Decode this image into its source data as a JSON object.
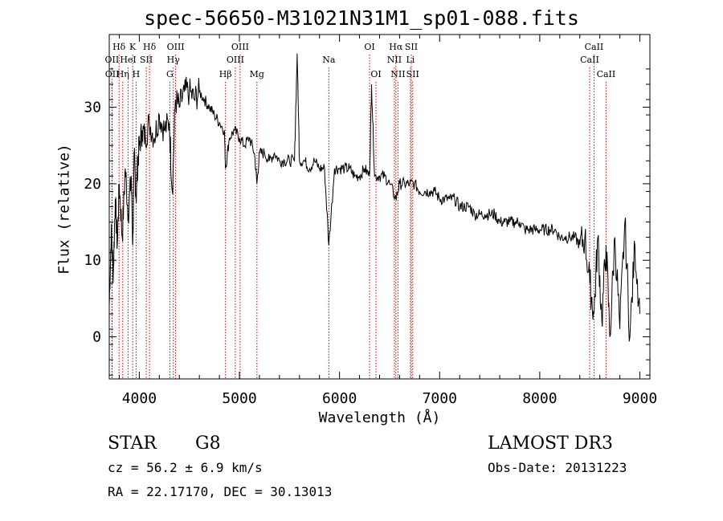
{
  "title": "spec-56650-M31021N31M1_sp01-088.fits",
  "footer": {
    "object_type": "STAR",
    "spectral_class": "G8",
    "survey": "LAMOST DR3",
    "cz": "cz = 56.2 ± 6.9 km/s",
    "obs_date": "Obs-Date: 20131223",
    "coords": "RA =  22.17170, DEC =  30.13013"
  },
  "chart_data": {
    "type": "line",
    "xlabel": "Wavelength (Å)",
    "ylabel": "Flux (relative)",
    "xlim": [
      3700,
      9100
    ],
    "ylim": [
      -5.5,
      39.5
    ],
    "xticks": [
      4000,
      5000,
      6000,
      7000,
      8000,
      9000
    ],
    "yticks": [
      0,
      10,
      20,
      30
    ],
    "series": [
      {
        "x": [
          3700,
          3720,
          3740,
          3760,
          3780,
          3800,
          3830,
          3860,
          3890,
          3920,
          3935,
          3950,
          3968,
          3985,
          4000,
          4030,
          4060,
          4100,
          4150,
          4200,
          4250,
          4300,
          4330,
          4360,
          4400,
          4450,
          4500,
          4550,
          4600,
          4650,
          4700,
          4750,
          4800,
          4850,
          4861,
          4900,
          4950,
          5000,
          5050,
          5100,
          5150,
          5175,
          5200,
          5250,
          5300,
          5350,
          5400,
          5450,
          5500,
          5550,
          5577,
          5600,
          5650,
          5700,
          5750,
          5800,
          5850,
          5893,
          5950,
          6000,
          6050,
          6100,
          6150,
          6200,
          6250,
          6300,
          6320,
          6350,
          6400,
          6450,
          6500,
          6563,
          6600,
          6650,
          6700,
          6750,
          6800,
          6850,
          6900,
          6950,
          7000,
          7050,
          7100,
          7150,
          7200,
          7250,
          7300,
          7350,
          7400,
          7450,
          7500,
          7550,
          7600,
          7650,
          7700,
          7750,
          7800,
          7850,
          7900,
          7950,
          8000,
          8050,
          8100,
          8150,
          8200,
          8250,
          8300,
          8350,
          8400,
          8450,
          8500,
          8542,
          8580,
          8620,
          8662,
          8700,
          8750,
          8800,
          8850,
          8900,
          8950,
          9000
        ],
        "y": [
          4,
          14,
          8,
          18,
          12,
          20,
          13,
          22,
          16,
          21,
          12,
          24,
          18,
          23,
          25,
          27,
          26,
          28,
          26,
          29,
          27,
          28,
          19,
          31,
          30,
          32,
          32,
          31,
          32,
          31,
          30,
          29,
          28,
          27,
          22,
          26,
          27,
          26,
          25,
          26,
          24,
          20,
          24,
          24,
          23,
          24,
          23,
          23,
          23,
          23,
          37,
          23,
          23,
          22,
          23,
          22,
          22,
          12,
          22,
          22,
          22,
          22,
          21,
          21,
          22,
          21,
          33,
          21,
          21,
          21,
          20,
          18,
          20,
          20,
          20,
          20,
          19,
          19,
          19,
          19,
          18,
          18,
          18,
          18,
          17,
          17,
          17,
          16,
          16,
          16,
          16,
          16,
          15,
          15,
          15,
          15,
          15,
          14,
          14,
          14,
          14,
          14,
          14,
          14,
          13,
          13,
          13,
          13,
          12,
          13,
          7,
          3,
          13,
          2,
          12,
          0,
          13,
          1,
          15,
          0,
          12,
          3
        ]
      }
    ],
    "lines": [
      {
        "label": "Hδ",
        "wavelength": 3798,
        "row": 1
      },
      {
        "label": "OII",
        "wavelength": 3727,
        "row": 2
      },
      {
        "label": "OII",
        "wavelength": 3729,
        "row": 3
      },
      {
        "label": "K",
        "wavelength": 3934,
        "row": 1
      },
      {
        "label": "HeI",
        "wavelength": 3889,
        "row": 2
      },
      {
        "label": "Hη",
        "wavelength": 3835,
        "row": 3
      },
      {
        "label": "Hδ",
        "wavelength": 4102,
        "row": 1
      },
      {
        "label": "SII",
        "wavelength": 4070,
        "row": 2
      },
      {
        "label": "H",
        "wavelength": 3968,
        "row": 3
      },
      {
        "label": "OIII",
        "wavelength": 4363,
        "row": 1
      },
      {
        "label": "Hγ",
        "wavelength": 4340,
        "row": 2
      },
      {
        "label": "G",
        "wavelength": 4305,
        "row": 3
      },
      {
        "label": "OIII",
        "wavelength": 5007,
        "row": 1
      },
      {
        "label": "OIII",
        "wavelength": 4959,
        "row": 2
      },
      {
        "label": "Hβ",
        "wavelength": 4861,
        "row": 3
      },
      {
        "label": "Mg",
        "wavelength": 5175,
        "row": 3
      },
      {
        "label": "Na",
        "wavelength": 5893,
        "row": 2
      },
      {
        "label": "OI",
        "wavelength": 6300,
        "row": 1
      },
      {
        "label": "OI",
        "wavelength": 6364,
        "row": 3
      },
      {
        "label": "Hα",
        "wavelength": 6563,
        "row": 1
      },
      {
        "label": "SII",
        "wavelength": 6717,
        "row": 1
      },
      {
        "label": "NII",
        "wavelength": 6548,
        "row": 2
      },
      {
        "label": "Li",
        "wavelength": 6708,
        "row": 2
      },
      {
        "label": "NII",
        "wavelength": 6584,
        "row": 3
      },
      {
        "label": "SII",
        "wavelength": 6731,
        "row": 3
      },
      {
        "label": "CaII",
        "wavelength": 8542,
        "row": 1
      },
      {
        "label": "CaII",
        "wavelength": 8498,
        "row": 2
      },
      {
        "label": "CaII",
        "wavelength": 8662,
        "row": 3
      }
    ],
    "line_color": "#cc0000",
    "grid": false
  }
}
